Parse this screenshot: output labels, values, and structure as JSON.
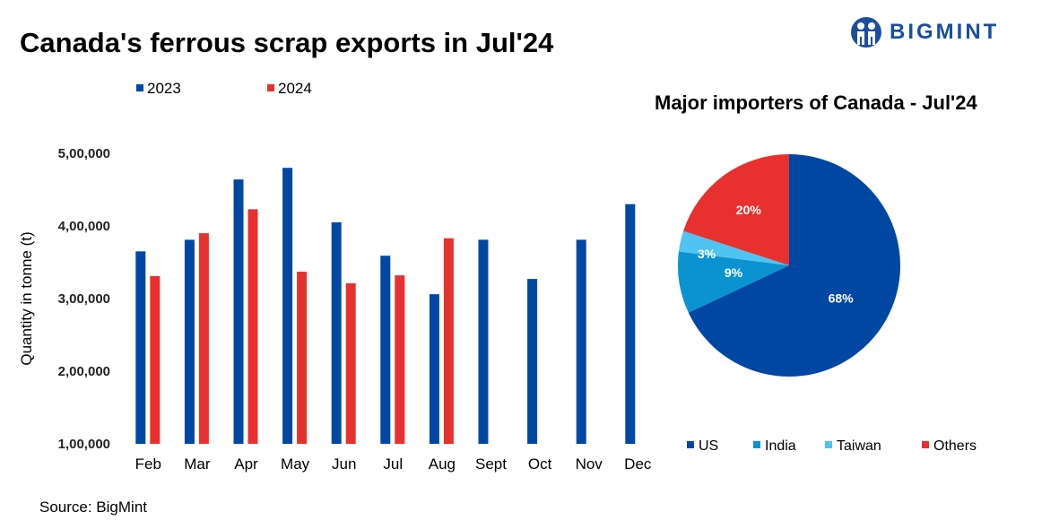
{
  "title": "Canada's ferrous scrap exports in Jul'24",
  "logo_text": "BIGMINT",
  "source": "Source: BigMint",
  "colors": {
    "y2023": "#0047a3",
    "y2024": "#e8312f",
    "us": "#0047a3",
    "india": "#0a93d0",
    "taiwan": "#4fc3f2",
    "others": "#e8312f"
  },
  "chart_data": [
    {
      "type": "bar",
      "title": "",
      "xlabel": "",
      "ylabel": "Quantity in tonne (t)",
      "ylim": [
        100000,
        500000
      ],
      "yticks": [
        100000,
        200000,
        300000,
        400000,
        500000
      ],
      "ytick_labels": [
        "1,00,000",
        "2,00,000",
        "3,00,000",
        "4,00,000",
        "5,00,000"
      ],
      "legend_position": "top-left",
      "grid": false,
      "categories": [
        "Feb",
        "Mar",
        "Apr",
        "May",
        "Jun",
        "Jul",
        "Aug",
        "Sept",
        "Oct",
        "Nov",
        "Dec"
      ],
      "series": [
        {
          "name": "2023",
          "values": [
            365000,
            381000,
            464000,
            480000,
            405000,
            359000,
            306000,
            381000,
            327000,
            381000,
            430000
          ]
        },
        {
          "name": "2024",
          "values": [
            331000,
            390000,
            423000,
            337000,
            321000,
            332000,
            383000,
            null,
            null,
            null,
            null
          ]
        }
      ]
    },
    {
      "type": "pie",
      "title": "Major importers of Canada - Jul'24",
      "legend_position": "bottom",
      "slices": [
        {
          "label": "US",
          "value": 68,
          "data_label": "68%"
        },
        {
          "label": "India",
          "value": 9,
          "data_label": "9%"
        },
        {
          "label": "Taiwan",
          "value": 3,
          "data_label": "3%"
        },
        {
          "label": "Others",
          "value": 20,
          "data_label": "20%"
        }
      ]
    }
  ]
}
